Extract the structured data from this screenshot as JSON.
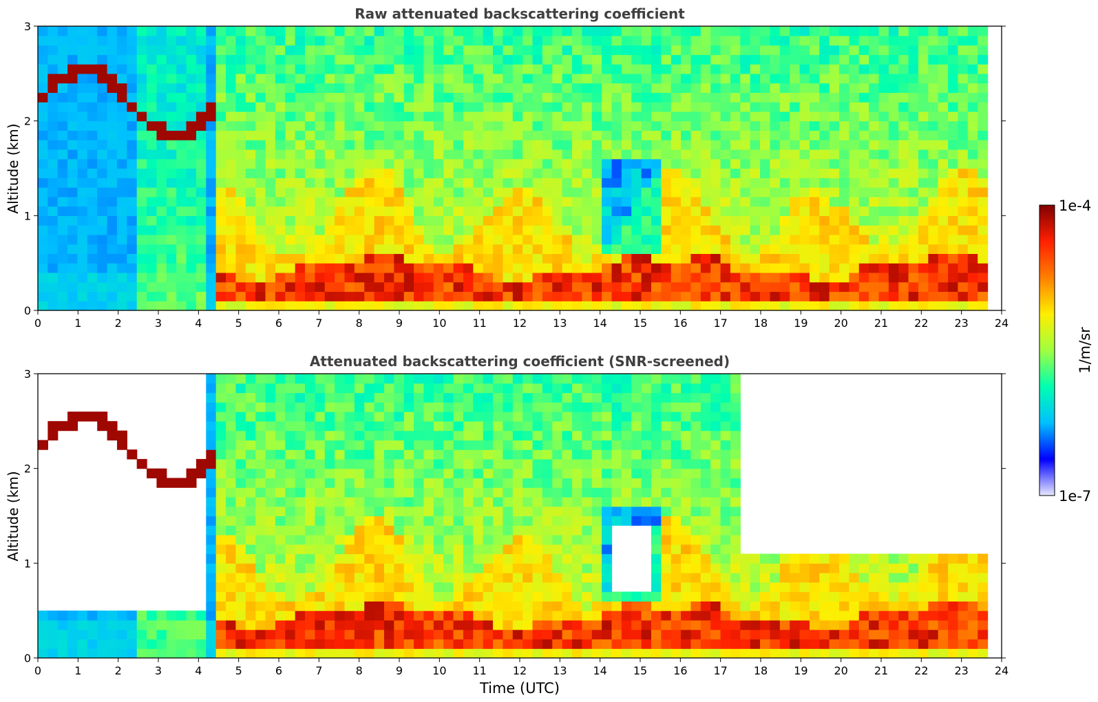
{
  "chart_data": [
    {
      "type": "heatmap",
      "id": "raw",
      "title": "Raw attenuated backscattering coefficient",
      "xlabel": "",
      "ylabel": "Altitude (km)",
      "xlim": [
        0,
        24
      ],
      "ylim": [
        0,
        3
      ],
      "xticks": [
        "0",
        "1",
        "2",
        "3",
        "4",
        "5",
        "6",
        "7",
        "8",
        "9",
        "10",
        "11",
        "12",
        "13",
        "14",
        "15",
        "16",
        "17",
        "18",
        "19",
        "20",
        "21",
        "22",
        "23",
        "24"
      ],
      "yticks": [
        "0",
        "1",
        "2",
        "3"
      ],
      "data_end_time": 23.65,
      "features": {
        "boundary_layer_top_km": 0.35,
        "elevated_cloud_top_early_km": 2.6,
        "elevated_cloud_start_utc": 0.0,
        "elevated_cloud_end_utc": 4.6
      }
    },
    {
      "type": "heatmap",
      "id": "snr",
      "title": "Attenuated backscattering coefficient (SNR-screened)",
      "xlabel": "Time (UTC)",
      "ylabel": "Altitude (km)",
      "xlim": [
        0,
        24
      ],
      "ylim": [
        0,
        3
      ],
      "xticks": [
        "0",
        "1",
        "2",
        "3",
        "4",
        "5",
        "6",
        "7",
        "8",
        "9",
        "10",
        "11",
        "12",
        "13",
        "14",
        "15",
        "16",
        "17",
        "18",
        "19",
        "20",
        "21",
        "22",
        "23",
        "24"
      ],
      "yticks": [
        "0",
        "1",
        "2",
        "3"
      ],
      "data_end_time": 23.65
    }
  ],
  "colorbar": {
    "label": "1/m/sr",
    "max_label": "1e-4",
    "min_label": "1e-7",
    "scale": "log",
    "range": [
      1e-07,
      0.0001
    ],
    "colors": [
      "#e8e8ff",
      "#0000ff",
      "#00c0ff",
      "#00ffb0",
      "#a0ff40",
      "#ffee00",
      "#ff8000",
      "#ff2000",
      "#800000"
    ]
  }
}
